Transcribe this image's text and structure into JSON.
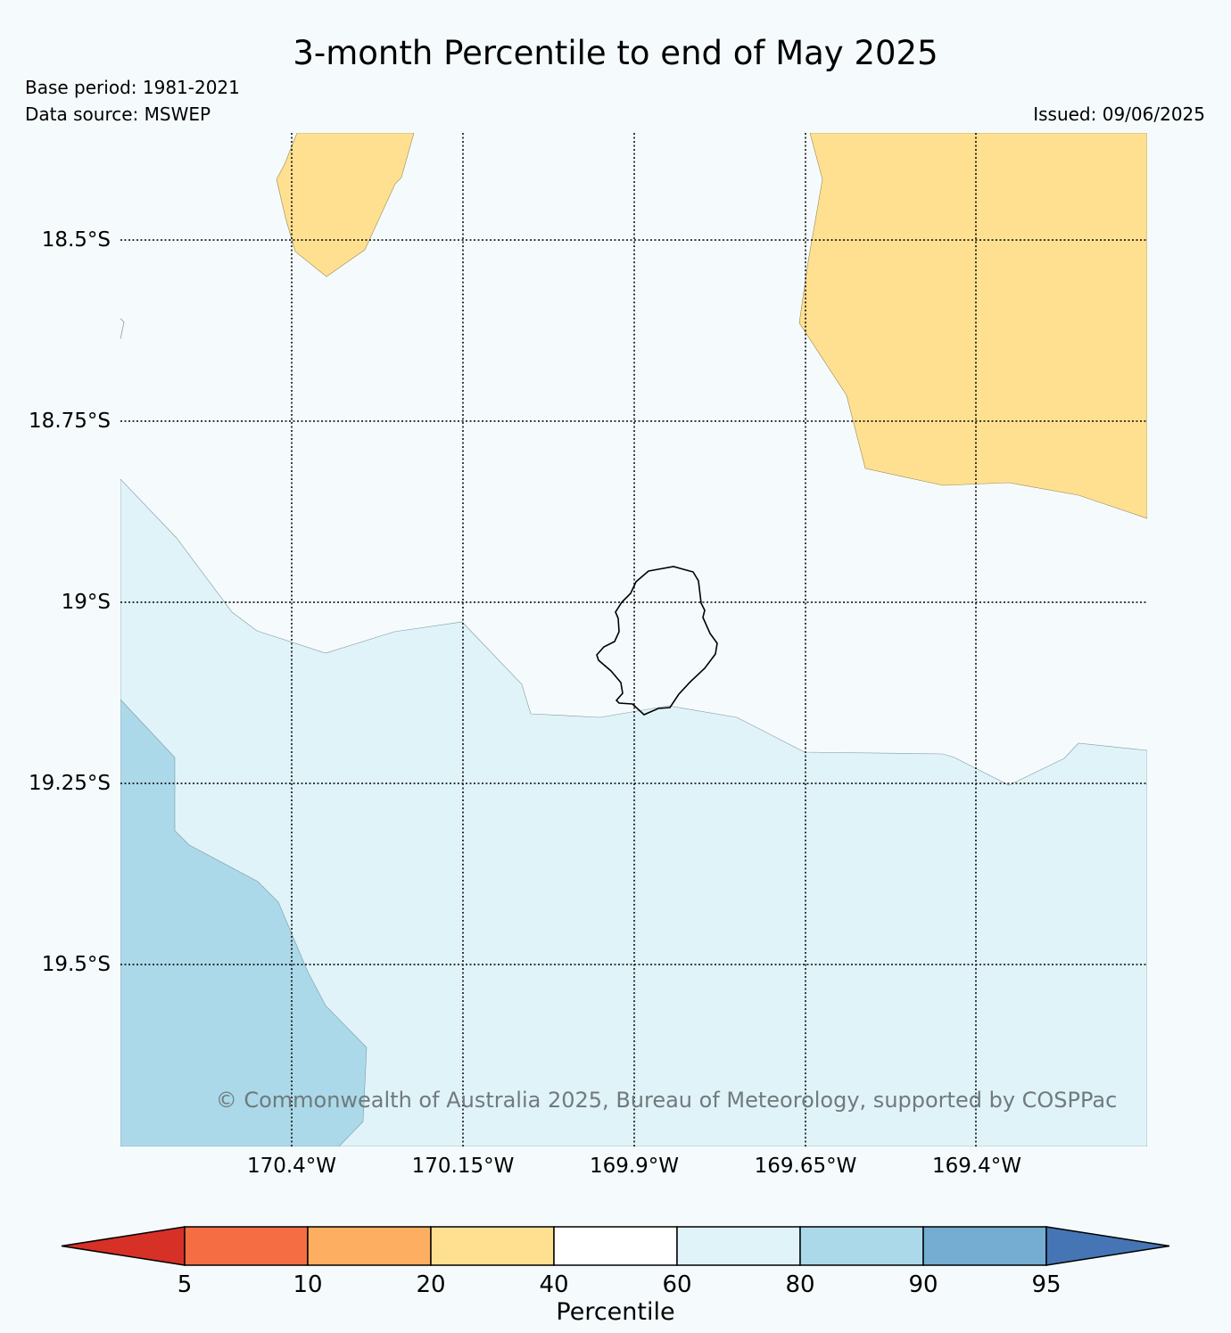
{
  "title": "3-month Percentile to end of May 2025",
  "base_period": "Base period: 1981-2021",
  "data_source": "Data source: MSWEP",
  "issued": "Issued: 09/06/2025",
  "copyright": "© Commonwealth of Australia 2025, Bureau of Meteorology, supported by COSPPac",
  "latitude_labels": [
    "18.5°S",
    "18.75°S",
    "19°S",
    "19.25°S",
    "19.5°S"
  ],
  "longitude_labels": [
    "170.4°W",
    "170.15°W",
    "169.9°W",
    "169.65°W",
    "169.4°W"
  ],
  "colorbar": {
    "label": "Percentile",
    "ticks": [
      "5",
      "10",
      "20",
      "40",
      "60",
      "80",
      "90",
      "95"
    ],
    "colors": [
      "#d73027",
      "#f46d43",
      "#fdae61",
      "#fee090",
      "#ffffff",
      "#e0f3f8",
      "#abd9e9",
      "#74add1",
      "#4575b4"
    ]
  },
  "map": {
    "region": "Niue",
    "colors": {
      "ocean_background": "#f5fbfc",
      "band_20_40": "#fee090",
      "band_60_80": "#e0f3f8",
      "band_80_90": "#abd9e9"
    }
  }
}
